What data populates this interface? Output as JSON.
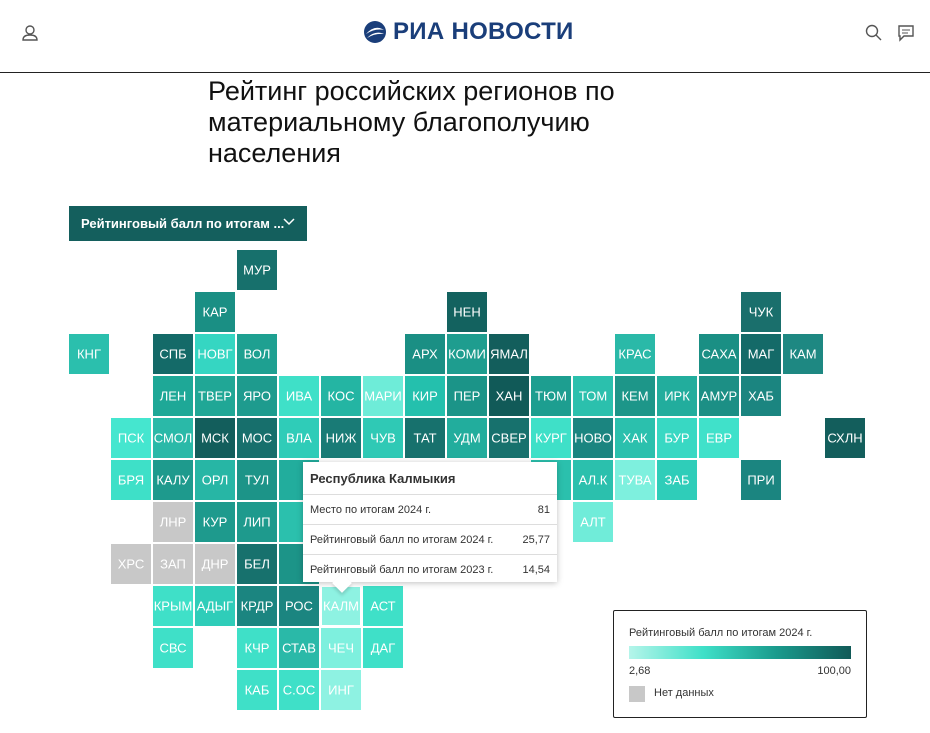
{
  "header": {
    "brand": "РИА НОВОСТИ"
  },
  "title": "Рейтинг российских регионов по материальному благополучию населения",
  "dropdown": "Рейтинговый балл по итогам ...",
  "tiles": [
    {
      "label": "МУР",
      "color": "#17706c"
    },
    {
      "label": "КАР",
      "color": "#1a8f84"
    },
    {
      "label": "НЕН",
      "color": "#13625f"
    },
    {
      "label": "ЧУК",
      "color": "#1a6f6c"
    },
    {
      "label": "КНГ",
      "color": "#2bbfad"
    },
    {
      "label": "СПБ",
      "color": "#146a68"
    },
    {
      "label": "НОВГ",
      "color": "#35d6c2"
    },
    {
      "label": "ВОЛ",
      "color": "#1ea091"
    },
    {
      "label": "АРХ",
      "color": "#1a8f84"
    },
    {
      "label": "КОМИ",
      "color": "#1e9d8f"
    },
    {
      "label": "ЯМАЛ",
      "color": "#135e5c"
    },
    {
      "label": "КРАС",
      "color": "#2ab9a8"
    },
    {
      "label": "САХА",
      "color": "#1a8f84"
    },
    {
      "label": "МАГ",
      "color": "#146a68"
    },
    {
      "label": "КАМ",
      "color": "#1e8882"
    },
    {
      "label": "ЛЕН",
      "color": "#1ea897"
    },
    {
      "label": "ТВЕР",
      "color": "#20a796"
    },
    {
      "label": "ЯРО",
      "color": "#1e9b8e"
    },
    {
      "label": "ИВА",
      "color": "#3fe0c8"
    },
    {
      "label": "КОС",
      "color": "#24b5a3"
    },
    {
      "label": "МАРИ",
      "color": "#6eecd8"
    },
    {
      "label": "КИР",
      "color": "#24c0ad"
    },
    {
      "label": "ПЕР",
      "color": "#1b9488"
    },
    {
      "label": "ХАН",
      "color": "#115a58"
    },
    {
      "label": "ТЮМ",
      "color": "#1d9e90"
    },
    {
      "label": "ТОМ",
      "color": "#2bc0ad"
    },
    {
      "label": "КЕМ",
      "color": "#1d9689"
    },
    {
      "label": "ИРК",
      "color": "#22ad9d"
    },
    {
      "label": "АМУР",
      "color": "#1c8f85"
    },
    {
      "label": "ХАБ",
      "color": "#1b8580"
    },
    {
      "label": "ПСК",
      "color": "#45e6cf"
    },
    {
      "label": "СМОЛ",
      "color": "#2ab9a8"
    },
    {
      "label": "МСК",
      "color": "#135e5c"
    },
    {
      "label": "МОС",
      "color": "#176f6c"
    },
    {
      "label": "ВЛА",
      "color": "#2fccb8"
    },
    {
      "label": "НИЖ",
      "color": "#197b76"
    },
    {
      "label": "ЧУВ",
      "color": "#2fc9b5"
    },
    {
      "label": "ТАТ",
      "color": "#17716d"
    },
    {
      "label": "УДМ",
      "color": "#22ad9d"
    },
    {
      "label": "СВЕР",
      "color": "#17716d"
    },
    {
      "label": "КУРГ",
      "color": "#3fe0c8"
    },
    {
      "label": "НОВО",
      "color": "#1b8580"
    },
    {
      "label": "ХАК",
      "color": "#2bc0ad"
    },
    {
      "label": "БУР",
      "color": "#38d8c3"
    },
    {
      "label": "ЕВР",
      "color": "#40e1ca"
    },
    {
      "label": "СХЛН",
      "color": "#135e5c"
    },
    {
      "label": "БРЯ",
      "color": "#3ee0c8"
    },
    {
      "label": "КАЛУ",
      "color": "#1e9a8d"
    },
    {
      "label": "ОРЛ",
      "color": "#27b6a5"
    },
    {
      "label": "ТУЛ",
      "color": "#1c9488"
    },
    {
      "label": null,
      "color": "#22ad9d"
    },
    {
      "label": null,
      "color": "#2bc0ad"
    },
    {
      "label": "АЛ.К",
      "color": "#2bc0ad"
    },
    {
      "label": "ТУВА",
      "color": "#7ef0de"
    },
    {
      "label": "ЗАБ",
      "color": "#2fcdb9"
    },
    {
      "label": "ПРИ",
      "color": "#1b8580"
    },
    {
      "label": "ЛНР",
      "color": "#c8c8c8"
    },
    {
      "label": "КУР",
      "color": "#1e9a8d"
    },
    {
      "label": "ЛИП",
      "color": "#1e9a8d"
    },
    {
      "label": null,
      "color": "#2bc0ad"
    },
    {
      "label": "АЛТ",
      "color": "#70ecd9"
    },
    {
      "label": "ХРС",
      "color": "#c8c8c8"
    },
    {
      "label": "ЗАП",
      "color": "#c8c8c8"
    },
    {
      "label": "ДНР",
      "color": "#c8c8c8"
    },
    {
      "label": "БЕЛ",
      "color": "#17716d"
    },
    {
      "label": null,
      "color": "#1c9488"
    },
    {
      "label": "КРЫМ",
      "color": "#3fe0c8"
    },
    {
      "label": "АДЫГ",
      "color": "#2fcdb9"
    },
    {
      "label": "КРДР",
      "color": "#1b8580"
    },
    {
      "label": "РОС",
      "color": "#1b8580"
    },
    {
      "label": "КАЛМ",
      "color": "#8ef2e2"
    },
    {
      "label": "АСТ",
      "color": "#3fe0c8"
    },
    {
      "label": "СВС",
      "color": "#3fe0c8"
    },
    {
      "label": "КЧР",
      "color": "#3fe0c8"
    },
    {
      "label": "СТАВ",
      "color": "#2ab9a8"
    },
    {
      "label": "ЧЕЧ",
      "color": "#7ef0de"
    },
    {
      "label": "ДАГ",
      "color": "#3fe0c8"
    },
    {
      "label": "КАБ",
      "color": "#3fe0c8"
    },
    {
      "label": "С.ОС",
      "color": "#3fe0c8"
    },
    {
      "label": "ИНГ",
      "color": "#8ef2e2"
    }
  ],
  "tooltip": {
    "title": "Республика Калмыкия",
    "rows": [
      [
        "Место по итогам 2024 г.",
        "81"
      ],
      [
        "Рейтинговый балл по итогам 2024 г.",
        "25,77"
      ],
      [
        "Рейтинговый балл по итогам 2023 г.",
        "14,54"
      ]
    ]
  },
  "legend": {
    "title": "Рейтинговый балл по итогам 2024 г.",
    "min": "2,68",
    "max": "100,00",
    "no_data": "Нет данных",
    "no_data_color": "#c8c8c8"
  }
}
